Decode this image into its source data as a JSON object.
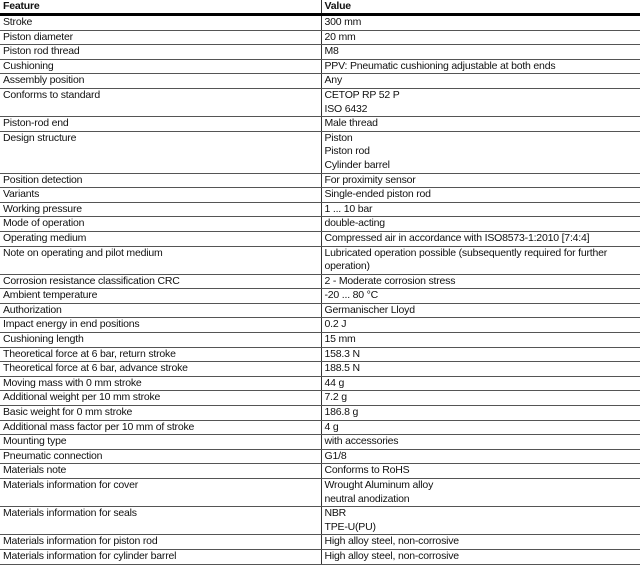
{
  "header": {
    "feature": "Feature",
    "value": "Value"
  },
  "rows": [
    {
      "feature": "Stroke",
      "values": [
        "300 mm"
      ]
    },
    {
      "feature": "Piston diameter",
      "values": [
        "20 mm"
      ]
    },
    {
      "feature": "Piston rod thread",
      "values": [
        "M8"
      ]
    },
    {
      "feature": "Cushioning",
      "values": [
        "PPV: Pneumatic cushioning adjustable at both ends"
      ]
    },
    {
      "feature": "Assembly position",
      "values": [
        "Any"
      ]
    },
    {
      "feature": "Conforms to standard",
      "values": [
        "CETOP RP 52 P",
        "ISO 6432"
      ]
    },
    {
      "feature": "Piston-rod end",
      "values": [
        "Male thread"
      ]
    },
    {
      "feature": "Design structure",
      "values": [
        "Piston",
        "Piston rod",
        "Cylinder barrel"
      ]
    },
    {
      "feature": "Position detection",
      "values": [
        "For proximity sensor"
      ]
    },
    {
      "feature": "Variants",
      "values": [
        "Single-ended piston rod"
      ]
    },
    {
      "feature": "Working pressure",
      "values": [
        "1 ... 10 bar"
      ]
    },
    {
      "feature": "Mode of operation",
      "values": [
        "double-acting"
      ]
    },
    {
      "feature": "Operating medium",
      "values": [
        "Compressed air in accordance with ISO8573-1:2010 [7:4:4]"
      ]
    },
    {
      "feature": "Note on operating and pilot medium",
      "values": [
        "Lubricated operation possible (subsequently required for further",
        "operation)"
      ]
    },
    {
      "feature": "Corrosion resistance classification CRC",
      "values": [
        "2 - Moderate corrosion stress"
      ]
    },
    {
      "feature": "Ambient temperature",
      "values": [
        "-20 ... 80 °C"
      ]
    },
    {
      "feature": "Authorization",
      "values": [
        "Germanischer Lloyd"
      ]
    },
    {
      "feature": "Impact energy in end positions",
      "values": [
        "0.2 J"
      ]
    },
    {
      "feature": "Cushioning length",
      "values": [
        "15 mm"
      ]
    },
    {
      "feature": "Theoretical force at 6 bar, return stroke",
      "values": [
        "158.3 N"
      ]
    },
    {
      "feature": "Theoretical force at 6 bar, advance stroke",
      "values": [
        "188.5 N"
      ]
    },
    {
      "feature": "Moving mass with 0 mm stroke",
      "values": [
        "44 g"
      ]
    },
    {
      "feature": "Additional weight per 10 mm stroke",
      "values": [
        "7.2 g"
      ]
    },
    {
      "feature": "Basic weight for 0 mm stroke",
      "values": [
        "186.8 g"
      ]
    },
    {
      "feature": "Additional mass factor per 10 mm of stroke",
      "values": [
        "4 g"
      ]
    },
    {
      "feature": "Mounting type",
      "values": [
        "with accessories"
      ]
    },
    {
      "feature": "Pneumatic connection",
      "values": [
        "G1/8"
      ]
    },
    {
      "feature": "Materials note",
      "values": [
        "Conforms to RoHS"
      ]
    },
    {
      "feature": "Materials information for cover",
      "values": [
        "Wrought Aluminum alloy",
        "neutral anodization"
      ]
    },
    {
      "feature": "Materials information for seals",
      "values": [
        "NBR",
        "TPE-U(PU)"
      ]
    },
    {
      "feature": "Materials information for piston rod",
      "values": [
        "High alloy steel, non-corrosive"
      ]
    },
    {
      "feature": "Materials information for cylinder barrel",
      "values": [
        "High alloy steel, non-corrosive"
      ]
    }
  ]
}
